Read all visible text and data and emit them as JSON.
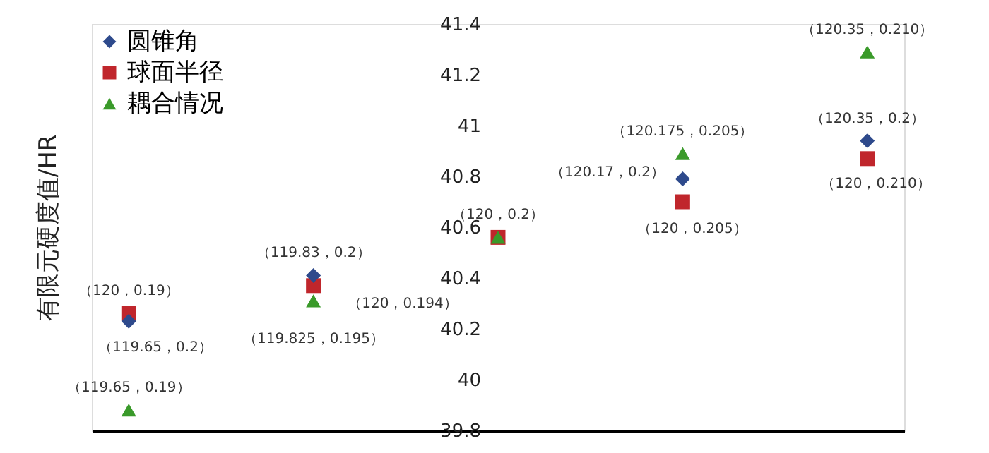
{
  "chart_data": {
    "type": "scatter",
    "ylabel": "有限元硬度值/HR",
    "categories": [
      null,
      null,
      null,
      null,
      null
    ],
    "ylim": [
      39.8,
      41.4
    ],
    "yticks": [
      39.8,
      40,
      40.2,
      40.4,
      40.6,
      40.8,
      41,
      41.2,
      41.4
    ],
    "tick_labels": "y",
    "grid": false,
    "legend": "top left",
    "series": [
      {
        "name": "圆锥角",
        "color": "#2e4a8c",
        "marker": "diamond",
        "values": [
          40.23,
          40.41,
          null,
          40.79,
          40.94
        ]
      },
      {
        "name": "球面半径",
        "color": "#c0262c",
        "marker": "square",
        "values": [
          40.26,
          40.37,
          40.56,
          40.7,
          40.87
        ]
      },
      {
        "name": "耦合情况",
        "color": "#3a9a2a",
        "marker": "triangle",
        "values": [
          39.88,
          40.31,
          40.56,
          40.89,
          41.29
        ]
      }
    ],
    "annotations": [
      {
        "text": "（120，0.19）",
        "y": 40.26
      },
      "（119.65，0.2）",
      {
        "text": "（119.65，0.19）",
        "y": 39.88
      },
      {
        "text": "（119.83，0.2）",
        "y": 40.41
      },
      "（120，0.194）",
      "（119.825，0.195）",
      {
        "text": "（120，0.2）",
        "y": 40.56
      },
      {
        "text": "（120.175，0.205）",
        "y": 40.89
      },
      "（120.17，0.2）",
      "（120，0.205）",
      {
        "text": "（120.35，0.210）",
        "y": 41.29
      },
      "（120.35，0.2）",
      "（120，0.210）"
    ]
  }
}
